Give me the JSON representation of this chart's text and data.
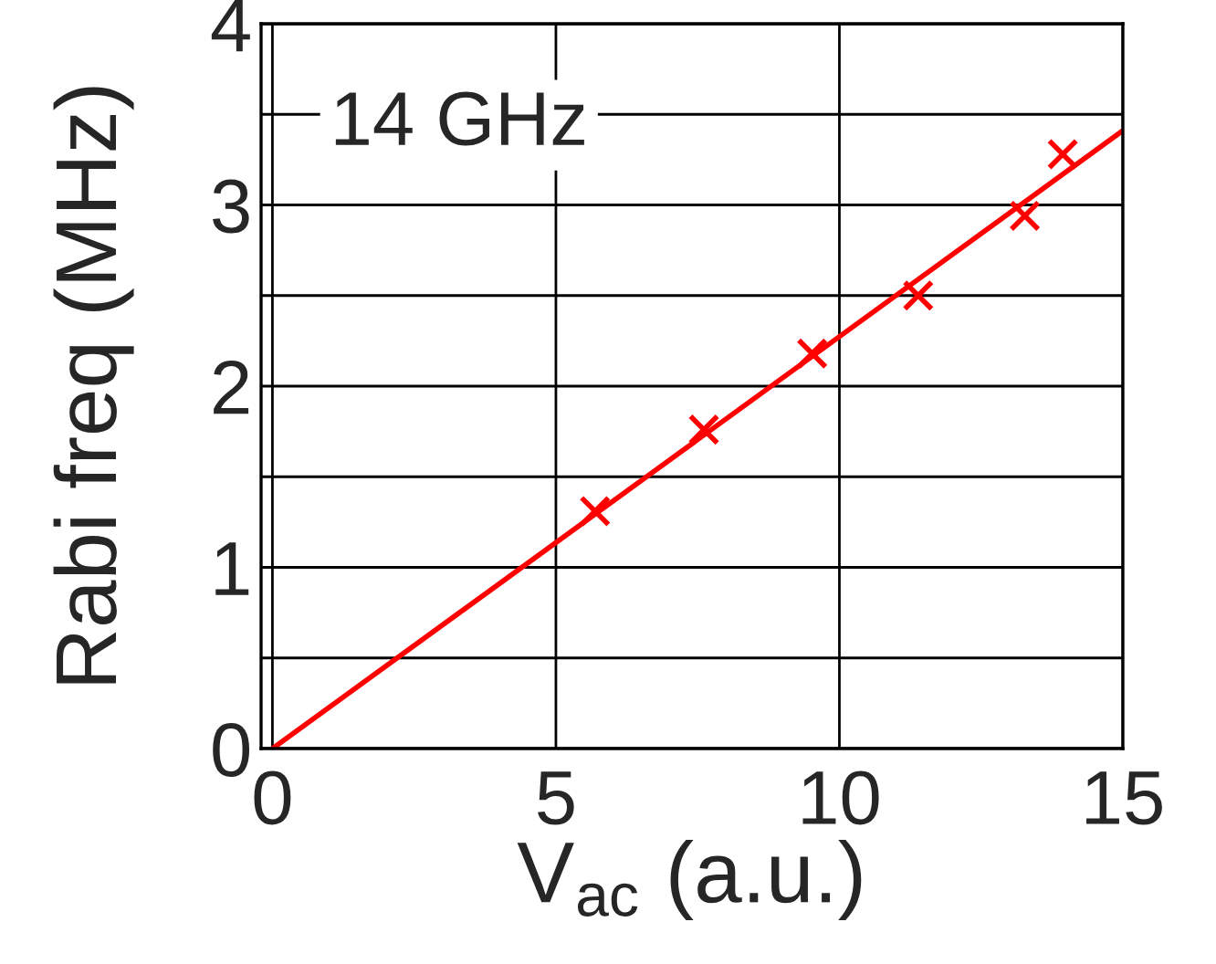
{
  "chart_data": {
    "type": "scatter",
    "xlabel": "V$_{ac}$ (a.u.)",
    "ylabel": "Rabi freq (MHz)",
    "annotations": [
      "14 GHz"
    ],
    "series": [
      {
        "color": "#ff0000",
        "marker": "cross",
        "x": [
          5.69,
          7.61,
          9.52,
          11.39,
          13.27,
          13.94
        ],
        "values": [
          1.31,
          1.76,
          2.18,
          2.5,
          2.94,
          3.28
        ]
      },
      {
        "type": "line",
        "color": "#ff0000",
        "x": [
          0,
          15
        ],
        "values": [
          0,
          3.41
        ]
      }
    ],
    "xlim": [
      -0.2,
      15
    ],
    "xticks": [
      0,
      5,
      10,
      15
    ],
    "ylim": [
      0,
      4
    ],
    "yticks": [
      0,
      {
        "value": 0.5,
        "label": null
      },
      1,
      {
        "value": 1.5,
        "label": null
      },
      2,
      {
        "value": 2.5,
        "label": null
      },
      3,
      {
        "value": 3.5,
        "label": null
      },
      4
    ],
    "grid": true
  }
}
